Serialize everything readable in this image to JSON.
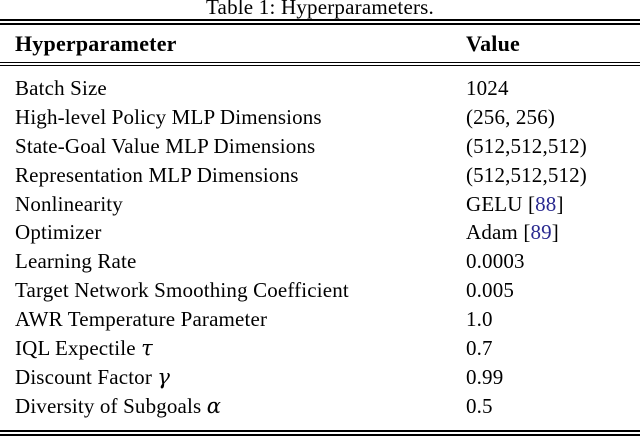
{
  "page": {
    "background": "#ffffff",
    "text_color": "#000000",
    "citation_color": "#2a2a90"
  },
  "caption": "Table 1: Hyperparameters.",
  "table": {
    "headers": [
      "Hyperparameter",
      "Value"
    ],
    "cite_open": " [",
    "cite_close": "]",
    "rows": [
      {
        "param": "Batch Size",
        "value": "1024"
      },
      {
        "param": "High-level Policy MLP Dimensions",
        "value": "(256, 256)"
      },
      {
        "param": "State-Goal Value MLP Dimensions",
        "value": "(512,512,512)"
      },
      {
        "param": "Representation MLP Dimensions",
        "value": "(512,512,512)"
      },
      {
        "param": "Nonlinearity",
        "value": "GELU",
        "cite": "88"
      },
      {
        "param": "Optimizer",
        "value": "Adam",
        "cite": "89"
      },
      {
        "param": "Learning Rate",
        "value": "0.0003"
      },
      {
        "param": "Target Network Smoothing Coefficient",
        "value": "0.005"
      },
      {
        "param": "AWR Temperature Parameter",
        "value": "1.0"
      },
      {
        "param": "IQL Expectile",
        "math": "τ",
        "value": "0.7"
      },
      {
        "param": "Discount Factor",
        "math": "γ",
        "value": "0.99"
      },
      {
        "param": "Diversity of Subgoals",
        "math": "α",
        "value": "0.5"
      }
    ]
  }
}
